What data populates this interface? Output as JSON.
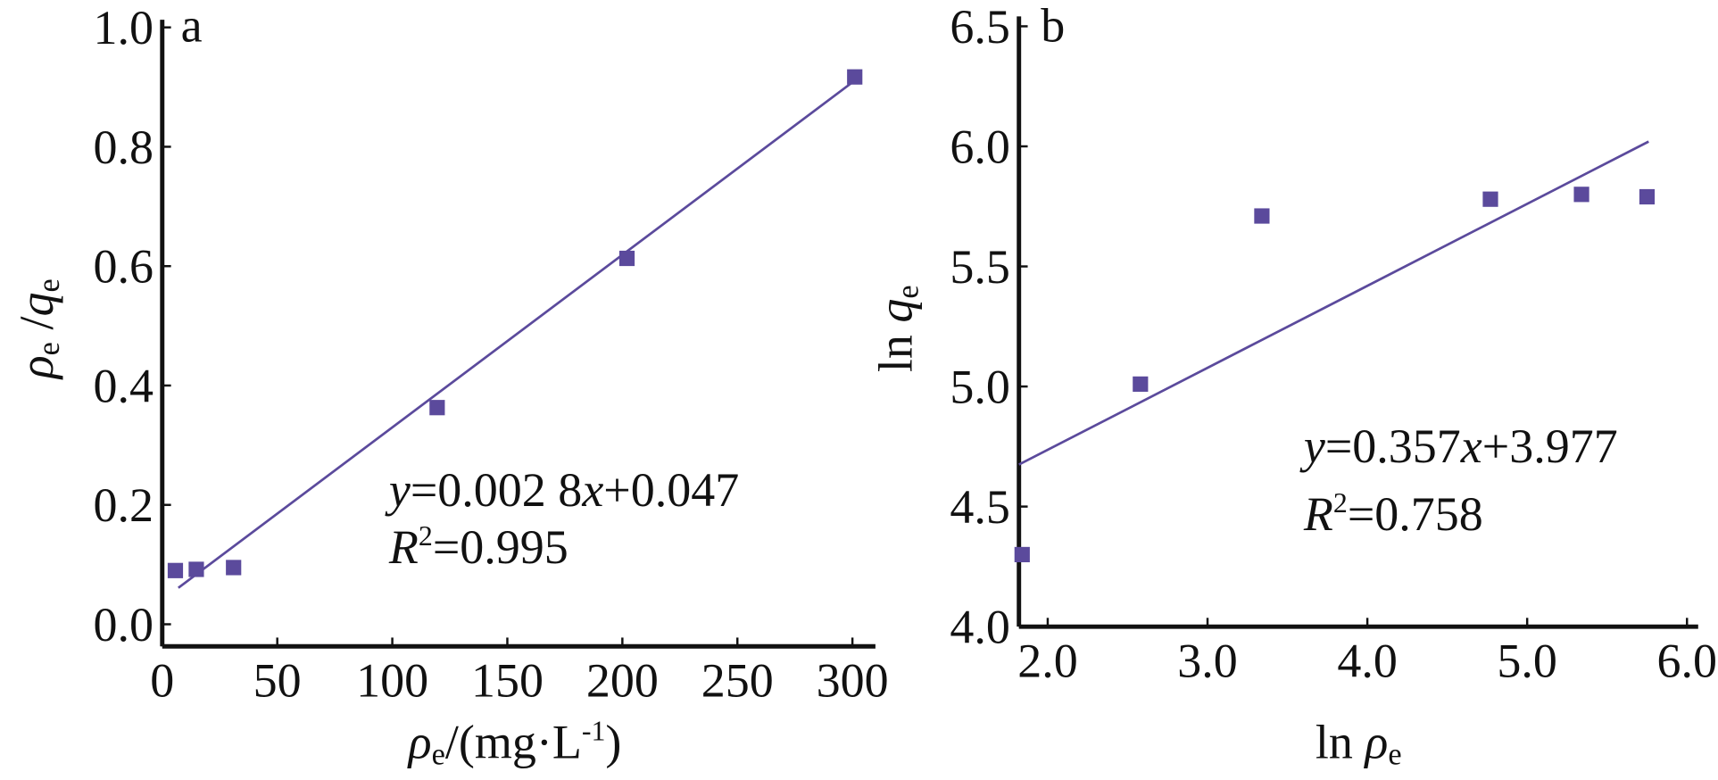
{
  "chart_data": [
    {
      "type": "scatter",
      "panel": "a",
      "x": [
        5.7,
        14.8,
        31,
        119.5,
        202,
        301
      ],
      "values": [
        0.09,
        0.092,
        0.095,
        0.363,
        0.613,
        0.917
      ],
      "color": "#5b4a9c",
      "fit": {
        "x": [
          7,
          300
        ],
        "values": [
          0.061,
          0.908
        ],
        "color": "#5b4a9c"
      },
      "xlim": [
        0,
        310
      ],
      "ylim": [
        -0.037,
        1.0
      ],
      "xticks": [
        0,
        50,
        100,
        150,
        200,
        250,
        300
      ],
      "yticks": [
        {
          "value": 0,
          "label": "0.0"
        },
        0.2,
        0.4,
        0.6,
        0.8,
        {
          "value": 1,
          "label": "1.0"
        }
      ],
      "xlabel": [
        "ρ",
        "e",
        "/(mg·L",
        "-1",
        ")"
      ],
      "ylabel": [
        "ρ",
        "e",
        " /",
        "q",
        "e"
      ],
      "equation": [
        "y",
        "=0.002 8",
        "x",
        "+0.047"
      ],
      "r2": [
        "R",
        "2",
        "=0.995"
      ]
    },
    {
      "type": "scatter",
      "panel": "b",
      "x": [
        1.84,
        2.58,
        3.34,
        4.77,
        5.34,
        5.75
      ],
      "values": [
        4.3,
        5.01,
        5.71,
        5.78,
        5.8,
        5.79
      ],
      "color": "#5b4a9c",
      "fit": {
        "x": [
          1.82,
          5.76
        ],
        "values": [
          4.675,
          6.02
        ],
        "color": "#5b4a9c"
      },
      "xlim": [
        1.82,
        6.07
      ],
      "ylim": [
        4.0,
        6.5
      ],
      "xticks": [
        {
          "value": 2,
          "label": "2.0"
        },
        {
          "value": 3,
          "label": "3.0"
        },
        {
          "value": 4,
          "label": "4.0"
        },
        {
          "value": 5,
          "label": "5.0"
        },
        {
          "value": 6,
          "label": "6.0"
        }
      ],
      "yticks": [
        {
          "value": 4,
          "label": "4.0"
        },
        4.5,
        {
          "value": 5,
          "label": "5.0"
        },
        5.5,
        {
          "value": 6,
          "label": "6.0"
        },
        6.5
      ],
      "xlabel": [
        "ln ",
        "ρ",
        "e"
      ],
      "ylabel": [
        "ln ",
        "q",
        "e"
      ],
      "equation": [
        "y",
        "=0.357",
        "x",
        "+3.977"
      ],
      "r2": [
        "R",
        "2",
        "=0.758"
      ]
    }
  ]
}
